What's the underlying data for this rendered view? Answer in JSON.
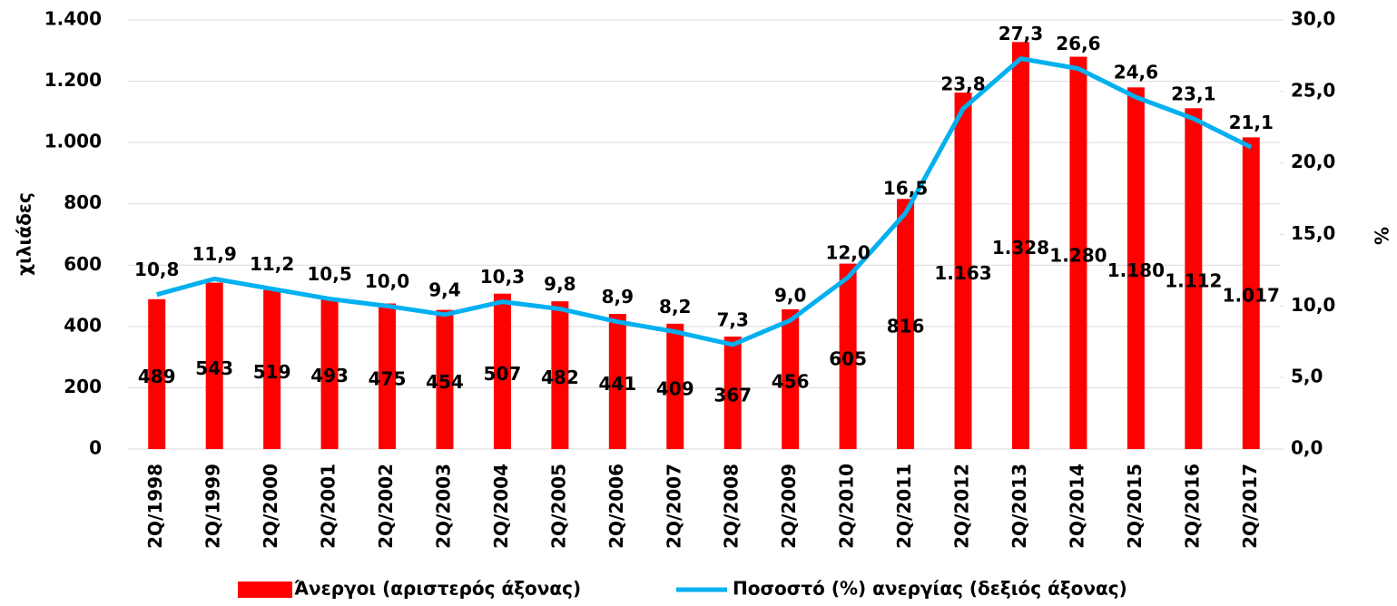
{
  "chart_data": {
    "type": "bar-line",
    "y_label": "χιλιάδες",
    "y2_label": "%",
    "categories": [
      "2Q/1998",
      "2Q/1999",
      "2Q/2000",
      "2Q/2001",
      "2Q/2002",
      "2Q/2003",
      "2Q/2004",
      "2Q/2005",
      "2Q/2006",
      "2Q/2007",
      "2Q/2008",
      "2Q/2009",
      "2Q/2010",
      "2Q/2011",
      "2Q/2012",
      "2Q/2013",
      "2Q/2014",
      "2Q/2015",
      "2Q/2016",
      "2Q/2017"
    ],
    "series": [
      {
        "name": "Άνεργοι (αριστερός άξονας)",
        "type": "bar",
        "color": "#ff0000",
        "values": [
          489,
          543,
          519,
          493,
          475,
          454,
          507,
          482,
          441,
          409,
          367,
          456,
          605,
          816,
          1163,
          1328,
          1280,
          1180,
          1112,
          1017
        ],
        "value_labels": [
          "489",
          "543",
          "519",
          "493",
          "475",
          "454",
          "507",
          "482",
          "441",
          "409",
          "367",
          "456",
          "605",
          "816",
          "1.163",
          "1.328",
          "1.280",
          "1.180",
          "1.112",
          "1.017"
        ]
      },
      {
        "name": "Ποσοστό (%) ανεργίας (δεξιός άξονας)",
        "type": "line",
        "axis": "y2",
        "color": "#00b0f0",
        "values": [
          10.8,
          11.9,
          11.2,
          10.5,
          10.0,
          9.4,
          10.3,
          9.8,
          8.9,
          8.2,
          7.3,
          9.0,
          12.0,
          16.5,
          23.8,
          27.3,
          26.6,
          24.6,
          23.1,
          21.1
        ],
        "value_labels": [
          "10,8",
          "11,9",
          "11,2",
          "10,5",
          "10,0",
          "9,4",
          "10,3",
          "9,8",
          "8,9",
          "8,2",
          "7,3",
          "9,0",
          "12,0",
          "16,5",
          "23,8",
          "27,3",
          "26,6",
          "24,6",
          "23,1",
          "21,1"
        ]
      }
    ],
    "ylim": [
      0,
      1400
    ],
    "yticks": [
      0,
      200,
      400,
      600,
      800,
      {
        "value": 1000,
        "label": "1.000"
      },
      {
        "value": 1200,
        "label": "1.200"
      },
      {
        "value": 1400,
        "label": "1.400"
      }
    ],
    "y2lim": [
      0,
      30
    ],
    "y2ticks": [
      {
        "value": 0,
        "label": "0,0"
      },
      {
        "value": 5,
        "label": "5,0"
      },
      {
        "value": 10,
        "label": "10,0"
      },
      {
        "value": 15,
        "label": "15,0"
      },
      {
        "value": 20,
        "label": "20,0"
      },
      {
        "value": 25,
        "label": "25,0"
      },
      {
        "value": 30,
        "label": "30,0"
      }
    ],
    "grid": true,
    "legend": "bottom"
  }
}
